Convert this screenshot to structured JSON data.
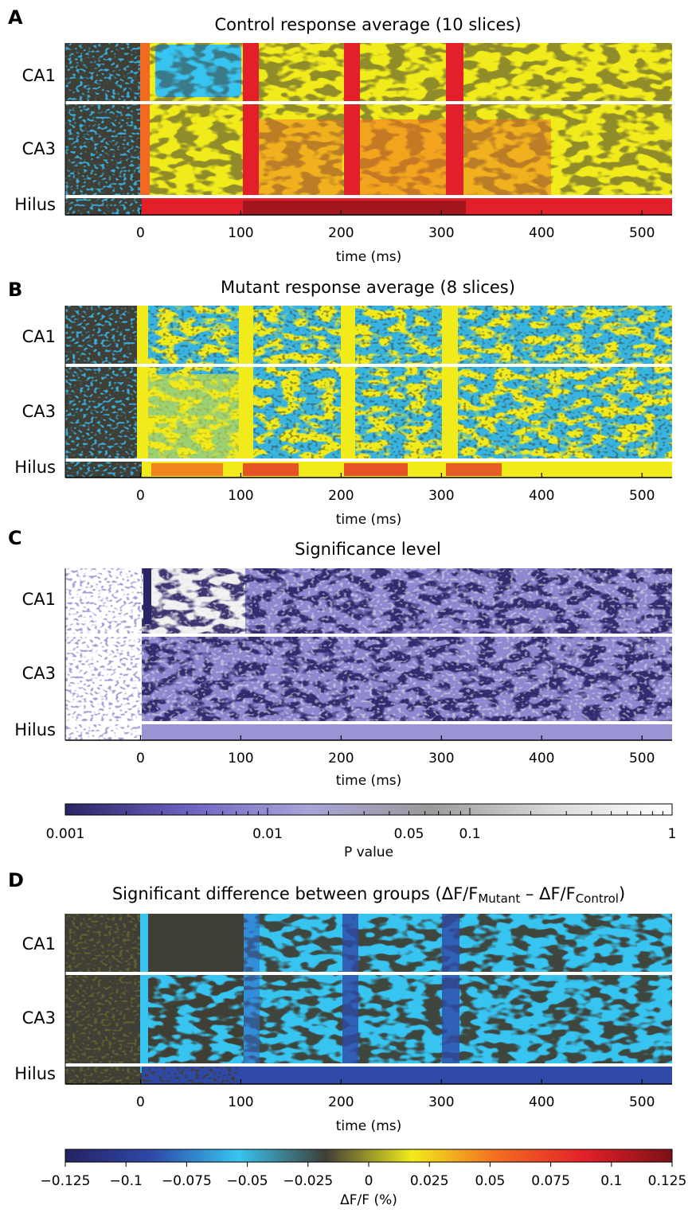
{
  "panels": [
    {
      "label": "A",
      "title": "Control response average (10 slices)",
      "type": "heatmap",
      "colormap": "dff",
      "regions": [
        "CA1",
        "CA3",
        "Hilus"
      ],
      "xlabel": "time (ms)",
      "xticks": [
        0,
        100,
        200,
        300,
        400,
        500
      ],
      "xlim": [
        -75,
        530
      ]
    },
    {
      "label": "B",
      "title": "Mutant response average (8 slices)",
      "type": "heatmap",
      "colormap": "dff",
      "regions": [
        "CA1",
        "CA3",
        "Hilus"
      ],
      "xlabel": "time (ms)",
      "xticks": [
        0,
        100,
        200,
        300,
        400,
        500
      ],
      "xlim": [
        -75,
        530
      ]
    },
    {
      "label": "C",
      "title": "Significance level",
      "type": "heatmap",
      "colormap": "pvalue",
      "regions": [
        "CA1",
        "CA3",
        "Hilus"
      ],
      "xlabel": "time (ms)",
      "xticks": [
        0,
        100,
        200,
        300,
        400,
        500
      ],
      "xlim": [
        -75,
        530
      ]
    },
    {
      "label": "D",
      "title_main": "Significant difference between groups (ΔF/F",
      "title_sub1": "Mutant",
      "title_mid": " – ΔF/F",
      "title_sub2": "Control",
      "title_end": ")",
      "type": "heatmap",
      "colormap": "diff",
      "regions": [
        "CA1",
        "CA3",
        "Hilus"
      ],
      "xlabel": "time (ms)",
      "xticks": [
        0,
        100,
        200,
        300,
        400,
        500
      ],
      "xlim": [
        -75,
        530
      ]
    }
  ],
  "pvalue_colorbar": {
    "label": "P value",
    "scale": "log",
    "range": [
      0.001,
      1
    ],
    "tick_labels": [
      {
        "v": 0.001,
        "t": "0.001"
      },
      {
        "v": 0.01,
        "t": "0.01"
      },
      {
        "v": 0.05,
        "t": "0.05"
      },
      {
        "v": 0.1,
        "t": "0.1"
      },
      {
        "v": 1,
        "t": "1"
      }
    ],
    "colors": [
      "#2a2466",
      "#6a62c0",
      "#a8a4d8",
      "#9a9a9a",
      "#d8d8d8",
      "#ffffff"
    ]
  },
  "dff_colorbar": {
    "label": "ΔF/F (%)",
    "range": [
      -0.125,
      0.125
    ],
    "tick_labels": [
      "−0.125",
      "−0.1",
      "−0.075",
      "−0.05",
      "−0.025",
      "0",
      "0.025",
      "0.05",
      "0.075",
      "0.1",
      "0.125"
    ],
    "tick_values": [
      -0.125,
      -0.1,
      -0.075,
      -0.05,
      -0.025,
      0,
      0.025,
      0.05,
      0.075,
      0.1,
      0.125
    ],
    "colors": [
      "#262262",
      "#2e49a8",
      "#37c4f0",
      "#3f3f36",
      "#f1eb1c",
      "#f26a21",
      "#e3202a",
      "#7a1115"
    ]
  },
  "chart_data": [
    {
      "type": "heatmap",
      "title": "Control response average (10 slices)",
      "xlabel": "time (ms)",
      "x_range": [
        -75,
        530
      ],
      "rows": [
        "CA1",
        "CA3",
        "Hilus"
      ],
      "stimuli_ms": [
        0,
        105,
        210,
        315
      ]
    },
    {
      "type": "heatmap",
      "title": "Mutant response average (8 slices)",
      "xlabel": "time (ms)",
      "x_range": [
        -75,
        530
      ],
      "rows": [
        "CA1",
        "CA3",
        "Hilus"
      ],
      "stimuli_ms": [
        0,
        105,
        210,
        315
      ]
    },
    {
      "type": "heatmap",
      "title": "Significance level",
      "xlabel": "time (ms)",
      "x_range": [
        -75,
        530
      ],
      "rows": [
        "CA1",
        "CA3",
        "Hilus"
      ],
      "colorbar": "P value (log 0.001–1)"
    },
    {
      "type": "heatmap",
      "title": "Significant difference between groups (ΔF/FMutant – ΔF/FControl)",
      "xlabel": "time (ms)",
      "x_range": [
        -75,
        530
      ],
      "rows": [
        "CA1",
        "CA3",
        "Hilus"
      ],
      "colorbar": "ΔF/F (%) −0.125–0.125"
    }
  ]
}
